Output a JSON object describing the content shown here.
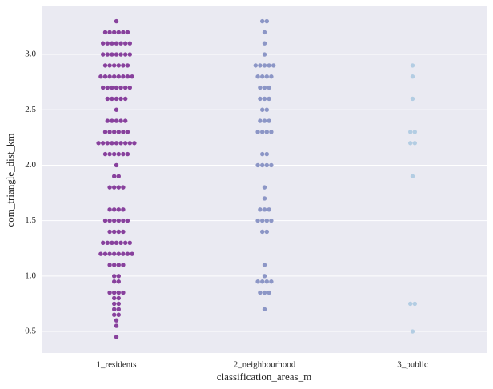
{
  "chart_data": {
    "type": "swarm",
    "xlabel": "classification_areas_m",
    "ylabel": "com_triangle_dist_km",
    "categories": [
      "1_residents",
      "2_neighbourhood",
      "3_public"
    ],
    "colors": [
      "#88419d",
      "#8c96c6",
      "#b3cde3"
    ],
    "values": [
      [
        3.3,
        3.2,
        3.2,
        3.2,
        3.2,
        3.2,
        3.2,
        3.1,
        3.1,
        3.1,
        3.1,
        3.1,
        3.1,
        3.1,
        3.0,
        3.0,
        3.0,
        3.0,
        3.0,
        3.0,
        3.0,
        2.9,
        2.9,
        2.9,
        2.9,
        2.9,
        2.9,
        2.8,
        2.8,
        2.8,
        2.8,
        2.8,
        2.8,
        2.8,
        2.8,
        2.7,
        2.7,
        2.7,
        2.7,
        2.7,
        2.7,
        2.7,
        2.6,
        2.6,
        2.6,
        2.6,
        2.6,
        2.5,
        2.4,
        2.4,
        2.4,
        2.4,
        2.4,
        2.3,
        2.3,
        2.3,
        2.3,
        2.3,
        2.3,
        2.2,
        2.2,
        2.2,
        2.2,
        2.2,
        2.2,
        2.2,
        2.2,
        2.2,
        2.1,
        2.1,
        2.1,
        2.1,
        2.1,
        2.1,
        2.0,
        1.9,
        1.9,
        1.8,
        1.8,
        1.8,
        1.8,
        1.6,
        1.6,
        1.6,
        1.6,
        1.5,
        1.5,
        1.5,
        1.5,
        1.5,
        1.5,
        1.4,
        1.4,
        1.4,
        1.4,
        1.3,
        1.3,
        1.3,
        1.3,
        1.3,
        1.3,
        1.3,
        1.2,
        1.2,
        1.2,
        1.2,
        1.2,
        1.2,
        1.2,
        1.2,
        1.1,
        1.1,
        1.1,
        1.1,
        1.0,
        1.0,
        0.95,
        0.95,
        0.85,
        0.85,
        0.85,
        0.85,
        0.8,
        0.8,
        0.75,
        0.75,
        0.7,
        0.7,
        0.65,
        0.65,
        0.6,
        0.55,
        0.45
      ],
      [
        3.3,
        3.3,
        3.2,
        3.1,
        3.0,
        2.9,
        2.9,
        2.9,
        2.9,
        2.9,
        2.8,
        2.8,
        2.8,
        2.8,
        2.7,
        2.7,
        2.7,
        2.6,
        2.6,
        2.6,
        2.5,
        2.5,
        2.4,
        2.4,
        2.4,
        2.3,
        2.3,
        2.3,
        2.3,
        2.1,
        2.1,
        2.0,
        2.0,
        2.0,
        2.0,
        1.8,
        1.7,
        1.6,
        1.6,
        1.6,
        1.5,
        1.5,
        1.5,
        1.5,
        1.4,
        1.4,
        1.1,
        1.0,
        0.95,
        0.95,
        0.95,
        0.95,
        0.85,
        0.85,
        0.85,
        0.7
      ],
      [
        2.9,
        2.8,
        2.6,
        2.3,
        2.3,
        2.2,
        2.2,
        1.9,
        0.75,
        0.75,
        0.5
      ]
    ],
    "ylim": [
      0.305,
      3.434
    ],
    "yticks": [
      0.5,
      {
        "value": 1,
        "label": "1.0"
      },
      1.5,
      {
        "value": 2,
        "label": "2.0"
      },
      2.5,
      {
        "value": 3,
        "label": "3.0"
      }
    ],
    "grid": true
  }
}
